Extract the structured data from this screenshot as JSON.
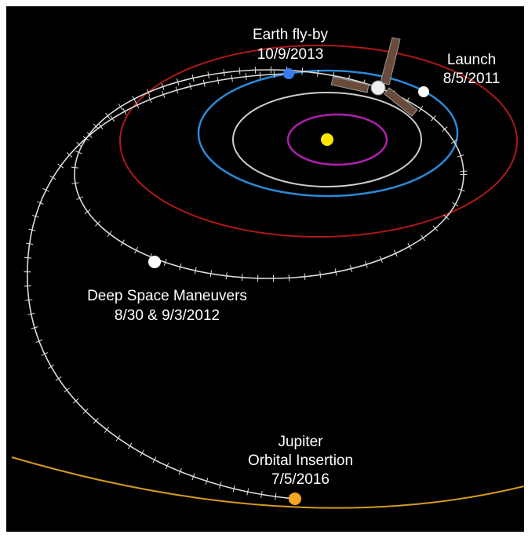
{
  "events": [
    {
      "lines": [
        "Earth fly-by"
      ],
      "date": "10/9/2013"
    },
    {
      "lines": [
        "Launch"
      ],
      "date": "8/5/2011"
    },
    {
      "lines": [
        "Deep Space Maneuvers"
      ],
      "date": "8/30 & 9/3/2012"
    },
    {
      "lines": [
        "Jupiter",
        "Orbital Insertion"
      ],
      "date": "7/5/2016"
    }
  ]
}
